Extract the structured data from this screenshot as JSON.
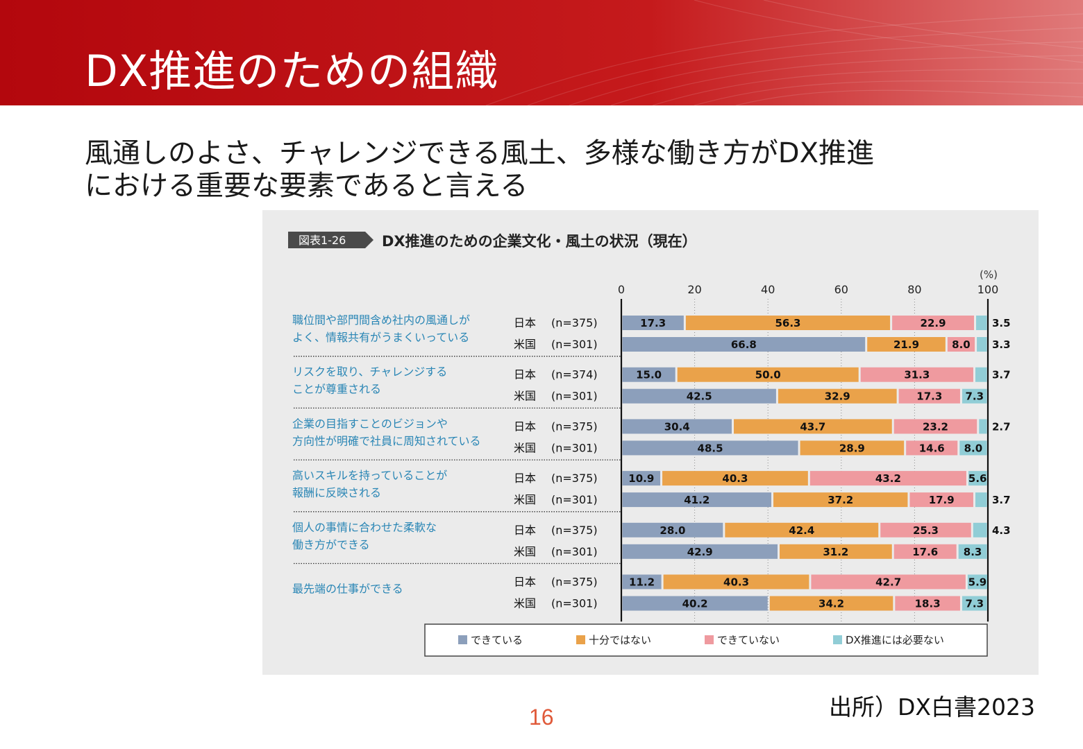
{
  "slide": {
    "title": "DX推進のための組織",
    "subtitle_line1": "風通しのよさ、チャレンジできる風土、多様な働き方がDX推進",
    "subtitle_line2": "における重要な要素であると言える",
    "source": "出所）DX白書2023",
    "page_number": "16"
  },
  "figure": {
    "badge": "図表1-26",
    "caption": "DX推進のための企業文化・風土の状況（現在）"
  },
  "chart_data": {
    "type": "bar",
    "orientation": "horizontal",
    "stacked": true,
    "unit_label": "(%)",
    "xlim": [
      0,
      100
    ],
    "xticks": [
      0,
      20,
      40,
      60,
      80,
      100
    ],
    "legend": [
      "できている",
      "十分ではない",
      "できていない",
      "DX推進には必要ない"
    ],
    "colors": [
      "#8c9fbb",
      "#eaa24a",
      "#ef9a9f",
      "#91cdd6"
    ],
    "groups": [
      {
        "label": [
          "職位間や部門間含め社内の風通しが",
          "よく、情報共有がうまくいっている"
        ],
        "rows": [
          {
            "country": "日本",
            "n": "(n=375)",
            "values": [
              17.3,
              56.3,
              22.9,
              3.5
            ]
          },
          {
            "country": "米国",
            "n": "(n=301)",
            "values": [
              66.8,
              21.9,
              8.0,
              3.3
            ]
          }
        ]
      },
      {
        "label": [
          "リスクを取り、チャレンジする",
          "ことが尊重される"
        ],
        "rows": [
          {
            "country": "日本",
            "n": "(n=374)",
            "values": [
              15.0,
              50.0,
              31.3,
              3.7
            ]
          },
          {
            "country": "米国",
            "n": "(n=301)",
            "values": [
              42.5,
              32.9,
              17.3,
              7.3
            ]
          }
        ]
      },
      {
        "label": [
          "企業の目指すことのビジョンや",
          "方向性が明確で社員に周知されている"
        ],
        "rows": [
          {
            "country": "日本",
            "n": "(n=375)",
            "values": [
              30.4,
              43.7,
              23.2,
              2.7
            ]
          },
          {
            "country": "米国",
            "n": "(n=301)",
            "values": [
              48.5,
              28.9,
              14.6,
              8.0
            ]
          }
        ]
      },
      {
        "label": [
          "高いスキルを持っていることが",
          "報酬に反映される"
        ],
        "rows": [
          {
            "country": "日本",
            "n": "(n=375)",
            "values": [
              10.9,
              40.3,
              43.2,
              5.6
            ]
          },
          {
            "country": "米国",
            "n": "(n=301)",
            "values": [
              41.2,
              37.2,
              17.9,
              3.7
            ]
          }
        ]
      },
      {
        "label": [
          "個人の事情に合わせた柔軟な",
          "働き方ができる"
        ],
        "rows": [
          {
            "country": "日本",
            "n": "(n=375)",
            "values": [
              28.0,
              42.4,
              25.3,
              4.3
            ]
          },
          {
            "country": "米国",
            "n": "(n=301)",
            "values": [
              42.9,
              31.2,
              17.6,
              8.3
            ]
          }
        ]
      },
      {
        "label": [
          "最先端の仕事ができる"
        ],
        "rows": [
          {
            "country": "日本",
            "n": "(n=375)",
            "values": [
              11.2,
              40.3,
              42.7,
              5.9
            ]
          },
          {
            "country": "米国",
            "n": "(n=301)",
            "values": [
              40.2,
              34.2,
              18.3,
              7.3
            ]
          }
        ]
      }
    ]
  }
}
